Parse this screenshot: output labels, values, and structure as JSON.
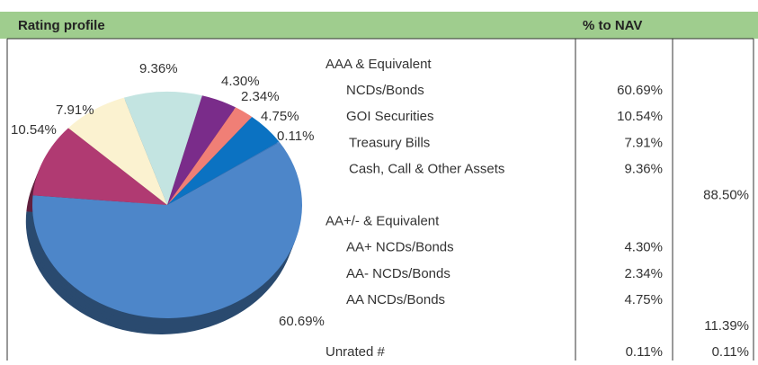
{
  "header": {
    "title": "Rating profile",
    "column": "% to NAV"
  },
  "chart_data": {
    "type": "pie",
    "values": [
      4.3,
      2.34,
      4.75,
      0.11,
      60.69,
      10.54,
      7.91,
      9.36
    ],
    "value_labels": [
      "4.30%",
      "2.34%",
      "4.75%",
      "0.11%",
      "60.69%",
      "10.54%",
      "7.91%",
      "9.36%"
    ],
    "colors": [
      "#7a2c8a",
      "#f07f76",
      "#0b72c2",
      "#3f7fc8",
      "#4d86c9",
      "#b03a72",
      "#fbf2d0",
      "#c3e4e1"
    ]
  },
  "table": {
    "groups": [
      {
        "title": "AAA & Equivalent",
        "items": [
          {
            "label": "NCDs/Bonds",
            "value": "60.69%"
          },
          {
            "label": "GOI Securities",
            "value": "10.54%"
          },
          {
            "label": "Treasury Bills",
            "value": "7.91%"
          },
          {
            "label": "Cash, Call & Other Assets",
            "value": "9.36%"
          }
        ],
        "total": "88.50%"
      },
      {
        "title": "AA+/- & Equivalent",
        "items": [
          {
            "label": "AA+  NCDs/Bonds",
            "value": "4.30%"
          },
          {
            "label": "AA-  NCDs/Bonds",
            "value": "2.34%"
          },
          {
            "label": "AA  NCDs/Bonds",
            "value": "4.75%"
          }
        ],
        "total": "11.39%"
      },
      {
        "title": "Unrated #",
        "value": "0.11%",
        "total": "0.11%"
      }
    ]
  }
}
